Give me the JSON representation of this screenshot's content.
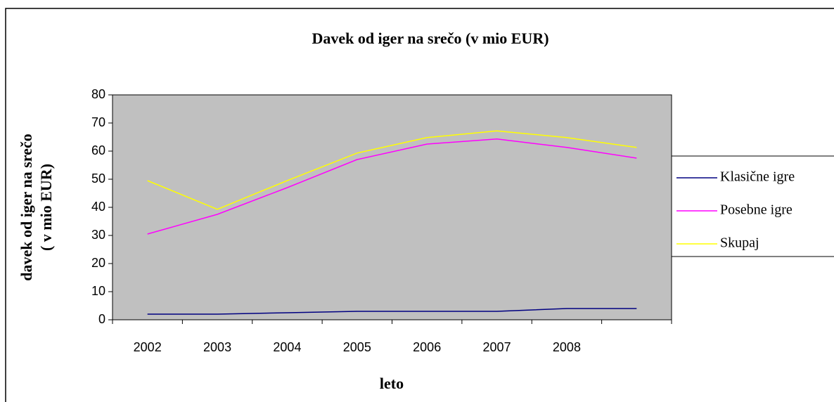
{
  "chart_data": {
    "type": "line",
    "title": "Davek od iger na srečo (v mio EUR)",
    "ylabel": [
      "davek od iger na srečo",
      "( v mio EUR)"
    ],
    "xlabel": "leto",
    "categories": [
      "2002",
      "2003",
      "2004",
      "2005",
      "2006",
      "2007",
      "2008",
      null
    ],
    "series": [
      {
        "name": "Klasične igre",
        "color": "#000080",
        "values": [
          2,
          2,
          2.5,
          3,
          3,
          3,
          4,
          4
        ]
      },
      {
        "name": "Posebne igre",
        "color": "#ff00ff",
        "values": [
          30.5,
          37.5,
          47,
          57,
          62.5,
          64.3,
          61.3,
          57.5
        ]
      },
      {
        "name": "Skupaj",
        "color": "#ffff00",
        "values": [
          49.5,
          39.3,
          49.5,
          59.3,
          64.8,
          67.2,
          64.8,
          61.3
        ]
      }
    ],
    "ylim": [
      0,
      80
    ],
    "yticks": [
      0,
      10,
      20,
      30,
      40,
      50,
      60,
      70,
      80
    ],
    "plot_background": "#c0c0c0",
    "legend": "right"
  }
}
